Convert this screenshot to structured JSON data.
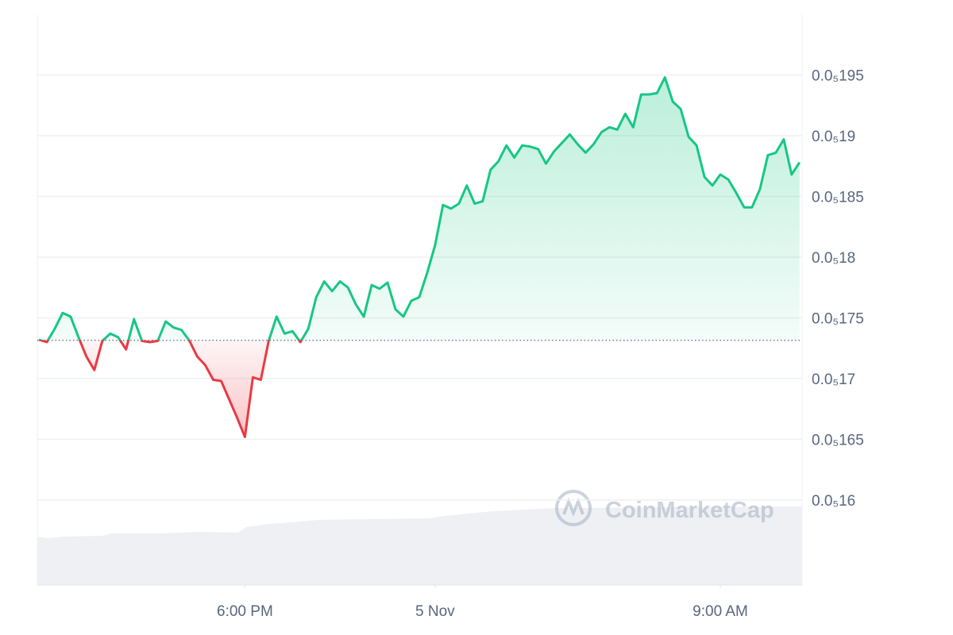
{
  "chart_data": {
    "type": "line",
    "watermark": "CoinMarketCap",
    "up_color": "#16c784",
    "down_color": "#ea3943",
    "baseline": 1.7315e-06,
    "grid": true,
    "xlim": [
      -12.55,
      11.58
    ],
    "ylim": [
      1.53e-06,
      2e-06
    ],
    "xticks": [
      {
        "value": -6,
        "label": "6:00 PM"
      },
      {
        "value": 0,
        "label": "5 Nov"
      },
      {
        "value": 9,
        "label": "9:00 AM"
      }
    ],
    "yticks": [
      {
        "value": 1.6e-06,
        "label": "0.0₅16"
      },
      {
        "value": 1.65e-06,
        "label": "0.0₅165"
      },
      {
        "value": 1.7e-06,
        "label": "0.0₅17"
      },
      {
        "value": 1.75e-06,
        "label": "0.0₅175"
      },
      {
        "value": 1.8e-06,
        "label": "0.0₅18"
      },
      {
        "value": 1.85e-06,
        "label": "0.0₅185"
      },
      {
        "value": 1.9e-06,
        "label": "0.0₅19"
      },
      {
        "value": 1.95e-06,
        "label": "0.0₅195"
      }
    ],
    "x": [
      -12.5,
      -12.25,
      -12,
      -11.75,
      -11.5,
      -11.25,
      -11,
      -10.75,
      -10.5,
      -10.25,
      -10,
      -9.75,
      -9.5,
      -9.25,
      -9,
      -8.75,
      -8.5,
      -8.25,
      -8,
      -7.75,
      -7.5,
      -7.25,
      -7,
      -6.75,
      -6.5,
      -6.25,
      -6,
      -5.75,
      -5.5,
      -5.25,
      -5,
      -4.75,
      -4.5,
      -4.25,
      -4,
      -3.75,
      -3.5,
      -3.25,
      -3,
      -2.75,
      -2.5,
      -2.25,
      -2,
      -1.75,
      -1.5,
      -1.25,
      -1,
      -0.75,
      -0.5,
      -0.25,
      0,
      0.25,
      0.5,
      0.75,
      1,
      1.25,
      1.5,
      1.75,
      2,
      2.25,
      2.5,
      2.75,
      3,
      3.25,
      3.5,
      3.75,
      4,
      4.25,
      4.5,
      4.75,
      5,
      5.25,
      5.5,
      5.75,
      6,
      6.25,
      6.5,
      6.75,
      7,
      7.25,
      7.5,
      7.75,
      8,
      8.25,
      8.5,
      8.75,
      9,
      9.25,
      9.5,
      9.75,
      10,
      10.25,
      10.5,
      10.75,
      11,
      11.25,
      11.5
    ],
    "values": [
      1.732e-06,
      1.73e-06,
      1.741e-06,
      1.754e-06,
      1.751e-06,
      1.734e-06,
      1.718e-06,
      1.707e-06,
      1.731e-06,
      1.737e-06,
      1.734e-06,
      1.724e-06,
      1.749e-06,
      1.731e-06,
      1.73e-06,
      1.731e-06,
      1.747e-06,
      1.742e-06,
      1.74e-06,
      1.731e-06,
      1.718e-06,
      1.711e-06,
      1.699e-06,
      1.698e-06,
      1.683e-06,
      1.668e-06,
      1.652e-06,
      1.701e-06,
      1.699e-06,
      1.731e-06,
      1.751e-06,
      1.737e-06,
      1.739e-06,
      1.73e-06,
      1.741e-06,
      1.767e-06,
      1.78e-06,
      1.772e-06,
      1.78e-06,
      1.775e-06,
      1.761e-06,
      1.751e-06,
      1.777e-06,
      1.774e-06,
      1.779e-06,
      1.757e-06,
      1.751e-06,
      1.764e-06,
      1.767e-06,
      1.787e-06,
      1.81e-06,
      1.843e-06,
      1.84e-06,
      1.844e-06,
      1.859e-06,
      1.844e-06,
      1.846e-06,
      1.872e-06,
      1.879e-06,
      1.892e-06,
      1.882e-06,
      1.892e-06,
      1.891e-06,
      1.889e-06,
      1.877e-06,
      1.887e-06,
      1.894e-06,
      1.901e-06,
      1.893e-06,
      1.886e-06,
      1.893e-06,
      1.903e-06,
      1.907e-06,
      1.905e-06,
      1.918e-06,
      1.907e-06,
      1.934e-06,
      1.934e-06,
      1.935e-06,
      1.948e-06,
      1.928e-06,
      1.922e-06,
      1.899e-06,
      1.892e-06,
      1.866e-06,
      1.859e-06,
      1.868e-06,
      1.864e-06,
      1.853e-06,
      1.841e-06,
      1.841e-06,
      1.856e-06,
      1.884e-06,
      1.886e-06,
      1.897e-06,
      1.868e-06,
      1.878e-06
    ]
  }
}
